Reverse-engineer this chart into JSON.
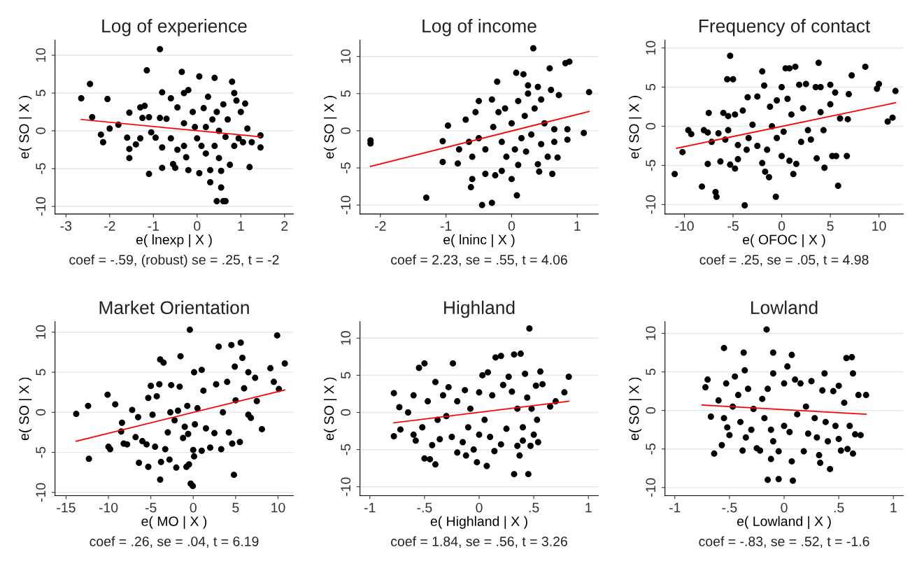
{
  "chart_data": [
    {
      "type": "scatter",
      "title": "Log of experience",
      "xlabel": "e( lnexp | X )",
      "ylabel": "e( SO | X )",
      "annotations": [
        "coef = -.59, (robust) se = .25, t = -2"
      ],
      "xlim": [
        -3.25,
        2.2
      ],
      "ylim": [
        -11,
        12
      ],
      "xticks": [
        -3,
        -2,
        -1,
        0,
        1,
        2
      ],
      "yticks": [
        -10,
        -5,
        0,
        5,
        10
      ],
      "grid": "y",
      "series": [
        {
          "marker": "circle",
          "color": "#000000",
          "x": [
            -2.65,
            -2.45,
            -2.4,
            -2.2,
            -2.15,
            -2.05,
            -2.0,
            -1.8,
            -1.55,
            -1.6,
            -1.55,
            -1.55,
            -1.4,
            -1.3,
            -1.3,
            -1.25,
            -1.2,
            -1.15,
            -1.1,
            -1.1,
            -1.05,
            -0.95,
            -0.85,
            -0.8,
            -0.8,
            -0.8,
            -0.85,
            -0.7,
            -0.6,
            -0.6,
            -0.55,
            -0.5,
            -0.45,
            -0.45,
            -0.35,
            -0.3,
            -0.3,
            -0.3,
            -0.25,
            -0.2,
            -0.2,
            -0.1,
            -0.05,
            0,
            0.05,
            0.05,
            0.1,
            0.15,
            0.2,
            0.2,
            0.25,
            0.3,
            0.3,
            0.35,
            0.4,
            0.4,
            0.45,
            0.45,
            0.5,
            0.5,
            0.55,
            0.55,
            0.6,
            0.6,
            0.65,
            0.65,
            0.7,
            0.75,
            0.8,
            0.85,
            0.85,
            0.9,
            0.95,
            1.0,
            1.05,
            1.1,
            1.15,
            1.2,
            1.25,
            1.45,
            1.45
          ],
          "values": [
            4.3,
            6.2,
            1.8,
            -0.5,
            -1.5,
            4.2,
            0.3,
            0.8,
            2.4,
            -0.9,
            -2.4,
            -3.6,
            -1.8,
            -1,
            3.1,
            1.7,
            3.3,
            8,
            -5.7,
            1.8,
            -0.2,
            -0.9,
            10.8,
            5.1,
            -2.2,
            -4.9,
            1.7,
            1.6,
            4.3,
            -1,
            -4.4,
            -4.9,
            3.1,
            -2.5,
            7.8,
            5,
            1,
            -2,
            -3.5,
            5.4,
            -5.2,
            2.5,
            0.5,
            -1,
            -5.6,
            7.2,
            -2,
            3,
            0.5,
            -3,
            4.5,
            -5.2,
            -6.8,
            1.5,
            7,
            -2,
            2.5,
            -9.3,
            -3.6,
            0,
            -5.3,
            -7.5,
            -9.3,
            3.5,
            -9.3,
            -0.8,
            1.5,
            -4.5,
            6.5,
            5,
            -2,
            4,
            -1,
            2.5,
            -1.5,
            3.6,
            0.3,
            -4.8,
            -1.5,
            -0.6,
            -2.2
          ]
        },
        {
          "type": "line",
          "color": "#ff0000",
          "x": [
            -2.65,
            1.45
          ],
          "values": [
            1.5,
            -0.8
          ]
        }
      ]
    },
    {
      "type": "scatter",
      "title": "Log of income",
      "xlabel": "e( lninc | X )",
      "ylabel": "e( SO | X )",
      "annotations": [
        "coef = 2.23, se = .55, t = 4.06"
      ],
      "xlim": [
        -2.31,
        1.32
      ],
      "ylim": [
        -11.2,
        12.2
      ],
      "xticks": [
        -2,
        -1,
        0,
        1
      ],
      "yticks": [
        -10,
        -5,
        0,
        5,
        10
      ],
      "grid": "y",
      "series": [
        {
          "marker": "circle",
          "color": "#000000",
          "x": [
            -2.15,
            -2.15,
            -1.3,
            -1.05,
            -1.05,
            -0.97,
            -0.8,
            -0.82,
            -0.7,
            -0.65,
            -0.6,
            -0.6,
            -0.62,
            -0.55,
            -0.5,
            -0.5,
            -0.45,
            -0.4,
            -0.4,
            -0.3,
            -0.3,
            -0.28,
            -0.25,
            -0.22,
            -0.2,
            -0.15,
            -0.15,
            -0.1,
            -0.08,
            0,
            0,
            0.05,
            0.07,
            0.08,
            0.1,
            0.1,
            0.15,
            0.18,
            0.2,
            0.22,
            0.25,
            0.25,
            0.3,
            0.33,
            0.35,
            0.4,
            0.4,
            0.42,
            0.45,
            0.45,
            0.5,
            0.55,
            0.58,
            0.6,
            0.62,
            0.65,
            0.65,
            0.7,
            0.72,
            0.82,
            0.85,
            0.85,
            0.88,
            1.1,
            1.18
          ],
          "values": [
            -1.3,
            -1.7,
            -9,
            -1.4,
            -4.2,
            0.7,
            -2.5,
            -4.4,
            1.5,
            -1.5,
            -3.5,
            -6.5,
            -7.6,
            2.5,
            4,
            -1,
            -10,
            -5.8,
            -2.5,
            4.2,
            -9.7,
            0.5,
            -6,
            6.6,
            2.5,
            -1.5,
            -5.4,
            3,
            -3.5,
            -6.5,
            1,
            -2.5,
            7.8,
            -8.7,
            4,
            -4.6,
            -1,
            7.6,
            2,
            -2.8,
            5,
            6.1,
            -0.5,
            11.1,
            3,
            5.9,
            -4.5,
            -5.5,
            4.2,
            -1.8,
            1,
            -3.5,
            8.4,
            5.5,
            -5.8,
            -1.5,
            0.2,
            -3.6,
            4.8,
            9.1,
            0.2,
            -1.2,
            9.3,
            -0.3,
            5.2
          ]
        },
        {
          "type": "line",
          "color": "#ff0000",
          "x": [
            -2.15,
            1.18
          ],
          "values": [
            -4.8,
            2.6
          ]
        }
      ]
    },
    {
      "type": "scatter",
      "title": "Frequency of contact",
      "xlabel": "e( OFOC | X )",
      "ylabel": "e( SO | X )",
      "annotations": [
        "coef = .25, se = .05, t = 4.98"
      ],
      "xlim": [
        -12,
        12.5
      ],
      "ylim": [
        -11.2,
        11
      ],
      "xticks": [
        -10,
        -5,
        0,
        5,
        10
      ],
      "yticks": [
        -10,
        -5,
        0,
        5,
        10
      ],
      "grid": "y",
      "series": [
        {
          "marker": "circle",
          "color": "#000000",
          "x": [
            -11,
            -10.2,
            -9.6,
            -9.3,
            -8.2,
            -8,
            -7.6,
            -7.6,
            -7.5,
            -7.2,
            -6.8,
            -6.7,
            -6.5,
            -6.3,
            -6,
            -5.8,
            -5.5,
            -5.5,
            -5.6,
            -5.3,
            -5.3,
            -5,
            -4.8,
            -4.5,
            -4.8,
            -4.5,
            -4,
            -3.8,
            -3.6,
            -3.5,
            -3.4,
            -3,
            -2.5,
            -2.5,
            -2,
            -2,
            -1.8,
            -1.7,
            -1.5,
            -1.3,
            -1.2,
            -1,
            -0.5,
            -0.5,
            -0.6,
            0,
            0,
            0.2,
            0.4,
            0.6,
            0.8,
            0.8,
            1,
            1.2,
            1.4,
            1.5,
            1.8,
            2,
            2.2,
            2.5,
            2.7,
            3,
            3.5,
            3.6,
            3.8,
            4,
            4,
            4.3,
            4.4,
            5,
            5,
            5.2,
            5.5,
            5.6,
            5.8,
            6,
            6.7,
            6.8,
            6.9,
            7.2,
            8.6,
            9.8,
            10,
            10.9,
            11.4,
            11.7
          ],
          "values": [
            -6.1,
            -3.3,
            -0.5,
            -1,
            -7.7,
            -0.5,
            -0.8,
            -4.8,
            1.7,
            -2,
            -8.4,
            -9,
            -0.9,
            -4.5,
            1.7,
            -1.7,
            -0.5,
            1.3,
            6,
            9,
            -4.9,
            6,
            1.5,
            -4.2,
            -5.4,
            -2.4,
            2,
            -10.1,
            -3,
            3.7,
            -1.5,
            0.2,
            -2.5,
            3.8,
            7,
            -4.7,
            5.2,
            -5.8,
            -3,
            -6.5,
            2.5,
            0,
            3.3,
            -1.5,
            -9,
            5,
            -3.8,
            -0.7,
            7.4,
            3.5,
            7.4,
            -4.4,
            1.5,
            -6.1,
            7.6,
            -4.8,
            5.3,
            -2,
            2.3,
            5.4,
            -0.5,
            -1.7,
            5,
            -4.1,
            8.1,
            5,
            1.8,
            -0.5,
            -5.3,
            5.3,
            2.8,
            -3.8,
            4.3,
            -3.8,
            -7.6,
            1,
            -3.8,
            0.9,
            4.1,
            6.5,
            7.6,
            4.8,
            5.4,
            0.6,
            1.1,
            4.5
          ]
        },
        {
          "type": "line",
          "color": "#ff0000",
          "x": [
            -10.8,
            11.7
          ],
          "values": [
            -2.8,
            3.0
          ]
        }
      ]
    },
    {
      "type": "scatter",
      "title": "Market Orientation",
      "xlabel": "e( MO | X )",
      "ylabel": "e( SO | X )",
      "annotations": [
        "coef = .26, se = .04, t = 6.19"
      ],
      "xlim": [
        -16.3,
        11.8
      ],
      "ylim": [
        -10.4,
        11.3
      ],
      "xticks": [
        -15,
        -10,
        -5,
        0,
        5,
        10
      ],
      "yticks": [
        -10,
        -5,
        0,
        5,
        10
      ],
      "grid": "y",
      "series": [
        {
          "marker": "circle",
          "color": "#000000",
          "x": [
            -13.8,
            -12.4,
            -12.3,
            -10.1,
            -10,
            -9.8,
            -9.2,
            -8.4,
            -8.5,
            -8.2,
            -7.8,
            -7.2,
            -6.8,
            -6.5,
            -6.4,
            -6,
            -5.5,
            -5.3,
            -5.3,
            -5,
            -4.8,
            -4.5,
            -4.3,
            -4,
            -3.9,
            -3.9,
            -3.8,
            -3.5,
            -3.3,
            -3,
            -2.8,
            -2.7,
            -2.6,
            -2.2,
            -2.0,
            -1.8,
            -1.6,
            -1.5,
            -1.2,
            -1,
            -0.8,
            -0.7,
            -0.5,
            -0.6,
            -0.4,
            -0.3,
            -0.05,
            0,
            0.1,
            0.1,
            0.2,
            0.5,
            1,
            1,
            1.2,
            1.5,
            2,
            2.5,
            2.7,
            3,
            3.3,
            3.5,
            4,
            4.2,
            4.5,
            4.6,
            4.8,
            4.9,
            5,
            5.6,
            5.5,
            5.8,
            6,
            6.5,
            6.8,
            6.5,
            7.3,
            7.5,
            8.1,
            9.1,
            9.5,
            9.9,
            10.1,
            10.8
          ],
          "values": [
            -0.2,
            0.8,
            -5.8,
            2.2,
            -4.3,
            -4.6,
            1,
            -1.3,
            -2.4,
            -3.9,
            -4,
            0.3,
            -3.1,
            -0.6,
            -6.3,
            -3.6,
            -4,
            -6.8,
            1.8,
            3.3,
            -0.3,
            -4.3,
            2,
            3.5,
            -8.4,
            6.6,
            -6.2,
            6.2,
            -4.6,
            -2.5,
            -5.9,
            0,
            3.4,
            -1,
            -6.9,
            0.2,
            3.2,
            7,
            -3.2,
            -1.8,
            -6.8,
            0.8,
            -6.5,
            -2.7,
            10.3,
            -8.9,
            -9.2,
            -4.7,
            -5.5,
            5,
            -1.5,
            0.5,
            5.3,
            -4.8,
            2.7,
            -2,
            -4.4,
            -2.6,
            3.5,
            8.2,
            -4.6,
            0,
            3.8,
            -2.5,
            8.4,
            -3.9,
            -7.8,
            5.7,
            1.5,
            8.7,
            -3.7,
            6.8,
            3,
            -0.3,
            -0.7,
            5,
            4.3,
            1.4,
            -2.1,
            5.5,
            3.8,
            9.6,
            2.9,
            6.1
          ]
        },
        {
          "type": "line",
          "color": "#ff0000",
          "x": [
            -13.8,
            10.8
          ],
          "values": [
            -3.6,
            2.8
          ]
        }
      ]
    },
    {
      "type": "scatter",
      "title": "Highland",
      "xlabel": "e( Highland | X )",
      "ylabel": "e( SO | X )",
      "annotations": [
        "coef = 1.84, se = .56, t = 3.26"
      ],
      "xlim": [
        -1.09,
        1.09
      ],
      "ylim": [
        -11.2,
        12.2
      ],
      "xticks": [
        {
          "value": -1,
          "label": "-1"
        },
        {
          "value": -0.5,
          "label": "-.5"
        },
        0,
        {
          "value": 0.5,
          "label": ".5"
        },
        1
      ],
      "yticks": [
        -10,
        -5,
        0,
        5,
        10
      ],
      "grid": "y",
      "series": [
        {
          "marker": "circle",
          "color": "#000000",
          "x": [
            -0.78,
            -0.78,
            -0.73,
            -0.72,
            -0.65,
            -0.6,
            -0.6,
            -0.58,
            -0.55,
            -0.5,
            -0.52,
            -0.5,
            -0.47,
            -0.45,
            -0.43,
            -0.4,
            -0.4,
            -0.38,
            -0.36,
            -0.33,
            -0.3,
            -0.28,
            -0.25,
            -0.24,
            -0.2,
            -0.2,
            -0.15,
            -0.12,
            -0.13,
            -0.1,
            -0.08,
            -0.05,
            -0.02,
            0,
            0,
            0.03,
            0.05,
            0.07,
            0.08,
            0.1,
            0.12,
            0.14,
            0.15,
            0.2,
            0.2,
            0.22,
            0.25,
            0.27,
            0.3,
            0.32,
            0.32,
            0.35,
            0.35,
            0.37,
            0.38,
            0.4,
            0.4,
            0.42,
            0.44,
            0.45,
            0.46,
            0.47,
            0.48,
            0.5,
            0.52,
            0.53,
            0.54,
            0.56,
            0.58,
            0.65,
            0.7,
            0.78,
            0.82
          ],
          "values": [
            2.6,
            -3.2,
            0.7,
            -2.3,
            0,
            -3,
            2.3,
            -3.8,
            6,
            6.6,
            -2,
            -6.2,
            1.5,
            -6.3,
            -4.4,
            -7,
            4.1,
            -1,
            -3.6,
            2.3,
            -0.5,
            3.4,
            -3.3,
            6.6,
            1.5,
            -5.4,
            -4,
            -5.8,
            3,
            -2,
            0.5,
            -5,
            -6.7,
            2.7,
            -3,
            5,
            -1,
            -7.2,
            5.4,
            -3.3,
            2.3,
            -5.2,
            7.4,
            7.6,
            -4.3,
            3.7,
            -2.2,
            4.8,
            2.8,
            -8.3,
            7.8,
            -4.5,
            0.5,
            -5.8,
            7.9,
            -2,
            -3.8,
            5.2,
            2,
            -8.3,
            11.3,
            -4.5,
            0.5,
            -3,
            3.6,
            -1,
            -4,
            5.5,
            3.8,
            0.8,
            1.5,
            2.7,
            4.8
          ]
        },
        {
          "type": "line",
          "color": "#ff0000",
          "x": [
            -0.78,
            0.82
          ],
          "values": [
            -1.4,
            1.5
          ]
        }
      ]
    },
    {
      "type": "scatter",
      "title": "Lowland",
      "xlabel": "e( Lowland | X )",
      "ylabel": "e( SO | X )",
      "annotations": [
        "coef = -.83, se = .52, t = -1.6"
      ],
      "xlim": [
        -1.09,
        1.09
      ],
      "ylim": [
        -11.05,
        11.5
      ],
      "xticks": [
        {
          "value": -1,
          "label": "-1"
        },
        {
          "value": -0.5,
          "label": "-.5"
        },
        0,
        {
          "value": 0.5,
          "label": ".5"
        },
        1
      ],
      "yticks": [
        -10,
        -5,
        0,
        5,
        10
      ],
      "grid": "y",
      "series": [
        {
          "marker": "circle",
          "color": "#000000",
          "x": [
            -0.72,
            -0.7,
            -0.67,
            -0.64,
            -0.6,
            -0.57,
            -0.55,
            -0.55,
            -0.53,
            -0.52,
            -0.5,
            -0.47,
            -0.45,
            -0.42,
            -0.4,
            -0.38,
            -0.37,
            -0.36,
            -0.35,
            -0.33,
            -0.3,
            -0.28,
            -0.25,
            -0.22,
            -0.2,
            -0.18,
            -0.16,
            -0.15,
            -0.15,
            -0.12,
            -0.1,
            -0.1,
            -0.1,
            -0.12,
            -0.05,
            -0.05,
            0,
            0,
            0.03,
            0.05,
            0.07,
            0.07,
            0.08,
            0.1,
            0.12,
            0.15,
            0.18,
            0.2,
            0.22,
            0.25,
            0.28,
            0.3,
            0.32,
            0.33,
            0.35,
            0.37,
            0.38,
            0.4,
            0.42,
            0.45,
            0.47,
            0.5,
            0.5,
            0.52,
            0.55,
            0.57,
            0.58,
            0.6,
            0.62,
            0.63,
            0.63,
            0.65,
            0.68,
            0.7,
            0.75
          ],
          "values": [
            3,
            4,
            -0.8,
            -5.6,
            1.3,
            -4.5,
            8.1,
            -1,
            3.5,
            -2.2,
            -3.2,
            0.5,
            4.4,
            2,
            -1.5,
            -5.2,
            7.5,
            5.2,
            -3.5,
            2.8,
            -2.5,
            0.2,
            -4.9,
            -5.2,
            1.5,
            -1,
            10.5,
            -9,
            2.8,
            -2.5,
            -4,
            7.5,
            4.8,
            -6.3,
            -5.3,
            -8.9,
            3.5,
            -2,
            5.7,
            -2.8,
            7.2,
            -6.6,
            -9.1,
            4,
            -0.5,
            3.5,
            -5.3,
            0.5,
            -3,
            3.8,
            -1,
            -3.5,
            -5.8,
            -6.8,
            2.6,
            4.8,
            -1.5,
            -4,
            -7.6,
            2.5,
            -2,
            -3.7,
            3.2,
            -5.2,
            1,
            6.8,
            -5,
            -2,
            6.9,
            4.8,
            -5.6,
            -3.1,
            2,
            -3.2,
            2
          ]
        },
        {
          "type": "line",
          "color": "#ff0000",
          "x": [
            -0.75,
            0.75
          ],
          "values": [
            0.7,
            -0.5
          ]
        }
      ]
    }
  ]
}
